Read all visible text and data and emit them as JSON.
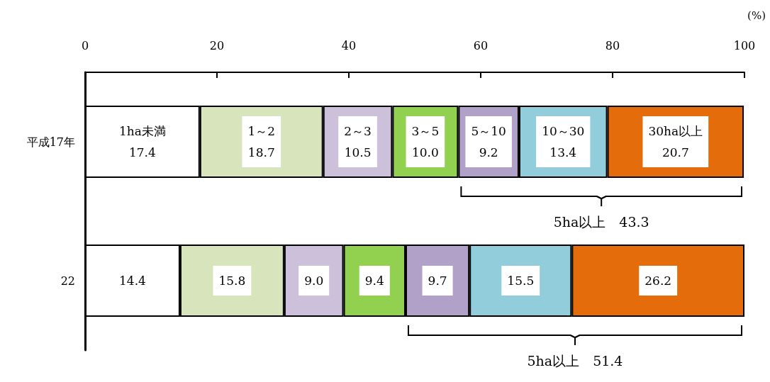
{
  "chart_data": {
    "type": "bar",
    "orientation": "horizontal",
    "stacked": true,
    "xlabel": "(%)",
    "categories": [
      "平成17年",
      "22"
    ],
    "xlim": [
      0,
      100
    ],
    "xticks": [
      0,
      20,
      40,
      60,
      80,
      100
    ],
    "grid": false,
    "legend": false,
    "series": [
      {
        "name": "1ha未満",
        "color": "#ffffff",
        "values": [
          17.4,
          14.4
        ],
        "value_labels": [
          "17.4",
          "14.4"
        ]
      },
      {
        "name": "1～2",
        "color": "#d8e4bc",
        "values": [
          18.7,
          15.8
        ],
        "value_labels": [
          "18.7",
          "15.8"
        ]
      },
      {
        "name": "2～3",
        "color": "#ccc0da",
        "values": [
          10.5,
          9.0
        ],
        "value_labels": [
          "10.5",
          "9.0"
        ]
      },
      {
        "name": "3～5",
        "color": "#92d050",
        "values": [
          10.0,
          9.4
        ],
        "value_labels": [
          "10.0",
          "9.4"
        ]
      },
      {
        "name": "5～10",
        "color": "#b1a0c7",
        "values": [
          9.2,
          9.7
        ],
        "value_labels": [
          "9.2",
          "9.7"
        ]
      },
      {
        "name": "10～30",
        "color": "#92cddc",
        "values": [
          13.4,
          15.5
        ],
        "value_labels": [
          "13.4",
          "15.5"
        ]
      },
      {
        "name": "30ha以上",
        "color": "#e46c0a",
        "values": [
          20.7,
          26.2
        ],
        "value_labels": [
          "20.7",
          "26.2"
        ]
      }
    ],
    "annotations": [
      "5ha以上　43.3",
      "5ha以上　51.4"
    ]
  }
}
